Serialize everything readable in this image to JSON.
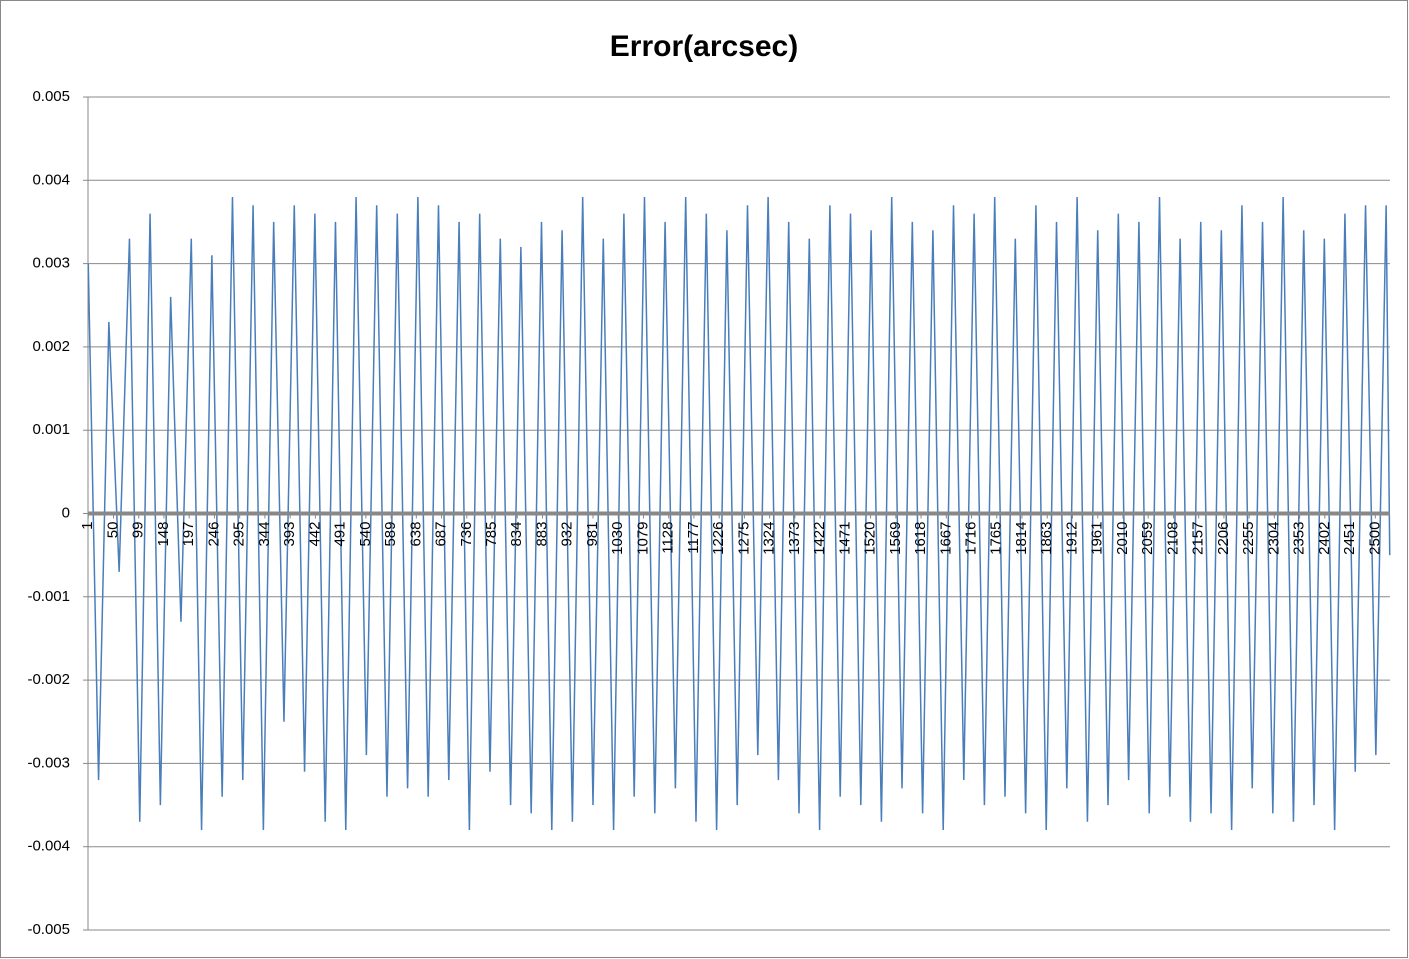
{
  "chart_data": {
    "type": "line",
    "title": "Error(arcsec)",
    "x": [
      1,
      21,
      41,
      61,
      81,
      101,
      121,
      141,
      161,
      181,
      201,
      221,
      241,
      261,
      281,
      301,
      321,
      341,
      361,
      381,
      401,
      421,
      441,
      461,
      481,
      501,
      521,
      541,
      561,
      581,
      601,
      621,
      641,
      661,
      681,
      701,
      721,
      741,
      761,
      781,
      801,
      821,
      841,
      861,
      881,
      901,
      921,
      941,
      961,
      981,
      1001,
      1021,
      1041,
      1061,
      1081,
      1101,
      1121,
      1141,
      1161,
      1181,
      1201,
      1221,
      1241,
      1261,
      1281,
      1301,
      1321,
      1341,
      1361,
      1381,
      1401,
      1421,
      1441,
      1461,
      1481,
      1501,
      1521,
      1541,
      1561,
      1581,
      1601,
      1621,
      1641,
      1661,
      1681,
      1701,
      1721,
      1741,
      1761,
      1781,
      1801,
      1821,
      1841,
      1861,
      1881,
      1901,
      1921,
      1941,
      1961,
      1981,
      2001,
      2021,
      2041,
      2061,
      2081,
      2101,
      2121,
      2141,
      2161,
      2181,
      2201,
      2221,
      2241,
      2261,
      2281,
      2301,
      2321,
      2341,
      2361,
      2381,
      2401,
      2421,
      2441,
      2461,
      2481,
      2501,
      2521,
      2528
    ],
    "series": [
      {
        "color": "#4a7ebb",
        "values": [
          0.003,
          -0.0032,
          0.0023,
          -0.0007,
          0.0033,
          -0.0037,
          0.0036,
          -0.0035,
          0.0026,
          -0.0013,
          0.0033,
          -0.0038,
          0.0031,
          -0.0034,
          0.0038,
          -0.0032,
          0.0037,
          -0.0038,
          0.0035,
          -0.0025,
          0.0037,
          -0.0031,
          0.0036,
          -0.0037,
          0.0035,
          -0.0038,
          0.0038,
          -0.0029,
          0.0037,
          -0.0034,
          0.0036,
          -0.0033,
          0.0038,
          -0.0034,
          0.0037,
          -0.0032,
          0.0035,
          -0.0038,
          0.0036,
          -0.0031,
          0.0033,
          -0.0035,
          0.0032,
          -0.0036,
          0.0035,
          -0.0038,
          0.0034,
          -0.0037,
          0.0038,
          -0.0035,
          0.0033,
          -0.0038,
          0.0036,
          -0.0034,
          0.0038,
          -0.0036,
          0.0035,
          -0.0033,
          0.0038,
          -0.0037,
          0.0036,
          -0.0038,
          0.0034,
          -0.0035,
          0.0037,
          -0.0029,
          0.0038,
          -0.0032,
          0.0035,
          -0.0036,
          0.0033,
          -0.0038,
          0.0037,
          -0.0034,
          0.0036,
          -0.0035,
          0.0034,
          -0.0037,
          0.0038,
          -0.0033,
          0.0035,
          -0.0036,
          0.0034,
          -0.0038,
          0.0037,
          -0.0032,
          0.0036,
          -0.0035,
          0.0038,
          -0.0034,
          0.0033,
          -0.0036,
          0.0037,
          -0.0038,
          0.0035,
          -0.0033,
          0.0038,
          -0.0037,
          0.0034,
          -0.0035,
          0.0036,
          -0.0032,
          0.0035,
          -0.0036,
          0.0038,
          -0.0034,
          0.0033,
          -0.0037,
          0.0035,
          -0.0036,
          0.0034,
          -0.0038,
          0.0037,
          -0.0033,
          0.0035,
          -0.0036,
          0.0038,
          -0.0037,
          0.0034,
          -0.0035,
          0.0033,
          -0.0038,
          0.0036,
          -0.0031,
          0.0037,
          -0.0029,
          0.0037,
          -0.0005
        ]
      }
    ],
    "xlim": [
      0.5,
      2528.5
    ],
    "xticks": [
      1,
      50,
      99,
      148,
      197,
      246,
      295,
      344,
      393,
      442,
      491,
      540,
      589,
      638,
      687,
      736,
      785,
      834,
      883,
      932,
      981,
      1030,
      1079,
      1128,
      1177,
      1226,
      1275,
      1324,
      1373,
      1422,
      1471,
      1520,
      1569,
      1618,
      1667,
      1716,
      1765,
      1814,
      1863,
      1912,
      1961,
      2010,
      2059,
      2108,
      2157,
      2206,
      2255,
      2304,
      2353,
      2402,
      2451,
      2500
    ],
    "ylim": [
      -0.005,
      0.005
    ],
    "yticks": [
      -0.005,
      -0.004,
      -0.003,
      -0.002,
      -0.001,
      0,
      0.001,
      0.002,
      0.003,
      0.004,
      0.005
    ],
    "grid": true
  }
}
